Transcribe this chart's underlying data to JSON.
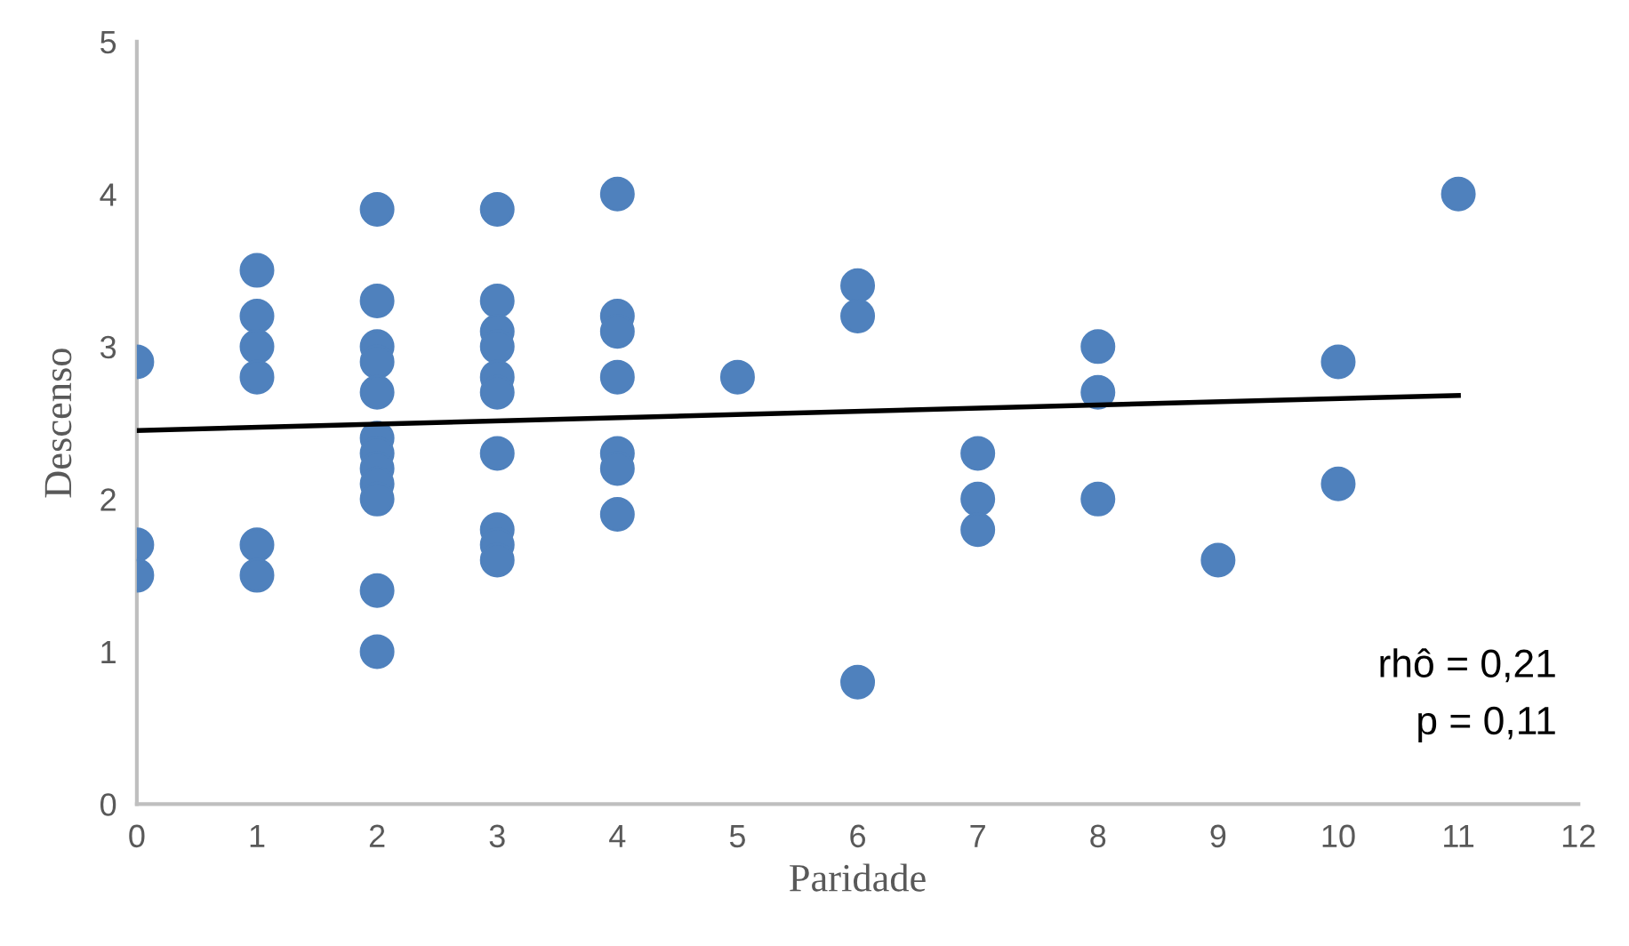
{
  "chart_data": {
    "type": "scatter",
    "xlabel": "Paridade",
    "ylabel": "Descenso",
    "xlim": [
      0,
      12
    ],
    "xticks": [
      0,
      1,
      2,
      3,
      4,
      5,
      6,
      7,
      8,
      9,
      10,
      11,
      12
    ],
    "ylim": [
      0,
      5
    ],
    "yticks": [
      0,
      1,
      2,
      3,
      4,
      5
    ],
    "grid": false,
    "series": [
      {
        "marker": "circle",
        "color": "#4f81bd",
        "x": [
          0,
          0,
          0,
          1,
          1,
          1,
          1,
          1,
          1,
          2,
          2,
          2,
          2,
          2,
          2,
          2,
          2,
          2,
          2,
          2,
          2,
          3,
          3,
          3,
          3,
          3,
          3,
          3,
          3,
          3,
          3,
          4,
          4,
          4,
          4,
          4,
          4,
          4,
          5,
          6,
          6,
          6,
          7,
          7,
          7,
          8,
          8,
          8,
          9,
          10,
          10,
          11
        ],
        "values": [
          2.9,
          1.7,
          1.5,
          3.5,
          3.2,
          3.0,
          2.8,
          1.7,
          1.5,
          3.9,
          3.3,
          3.0,
          2.9,
          2.7,
          2.4,
          2.3,
          2.2,
          2.1,
          2.0,
          1.4,
          1.0,
          3.9,
          3.3,
          3.1,
          3.0,
          2.8,
          2.7,
          2.3,
          1.8,
          1.7,
          1.6,
          4.0,
          3.2,
          3.1,
          2.8,
          2.3,
          2.2,
          1.9,
          2.8,
          3.4,
          3.2,
          0.8,
          2.3,
          2.0,
          1.8,
          3.0,
          2.7,
          2.0,
          1.6,
          2.9,
          2.1,
          4.0
        ]
      },
      {
        "type": "line",
        "color": "#000000",
        "x": [
          0,
          11
        ],
        "values": [
          2.45,
          2.68
        ],
        "marker": "none",
        "line_style": "solid"
      }
    ],
    "annotations": [
      "rhô = 0,21",
      "p = 0,11"
    ]
  }
}
